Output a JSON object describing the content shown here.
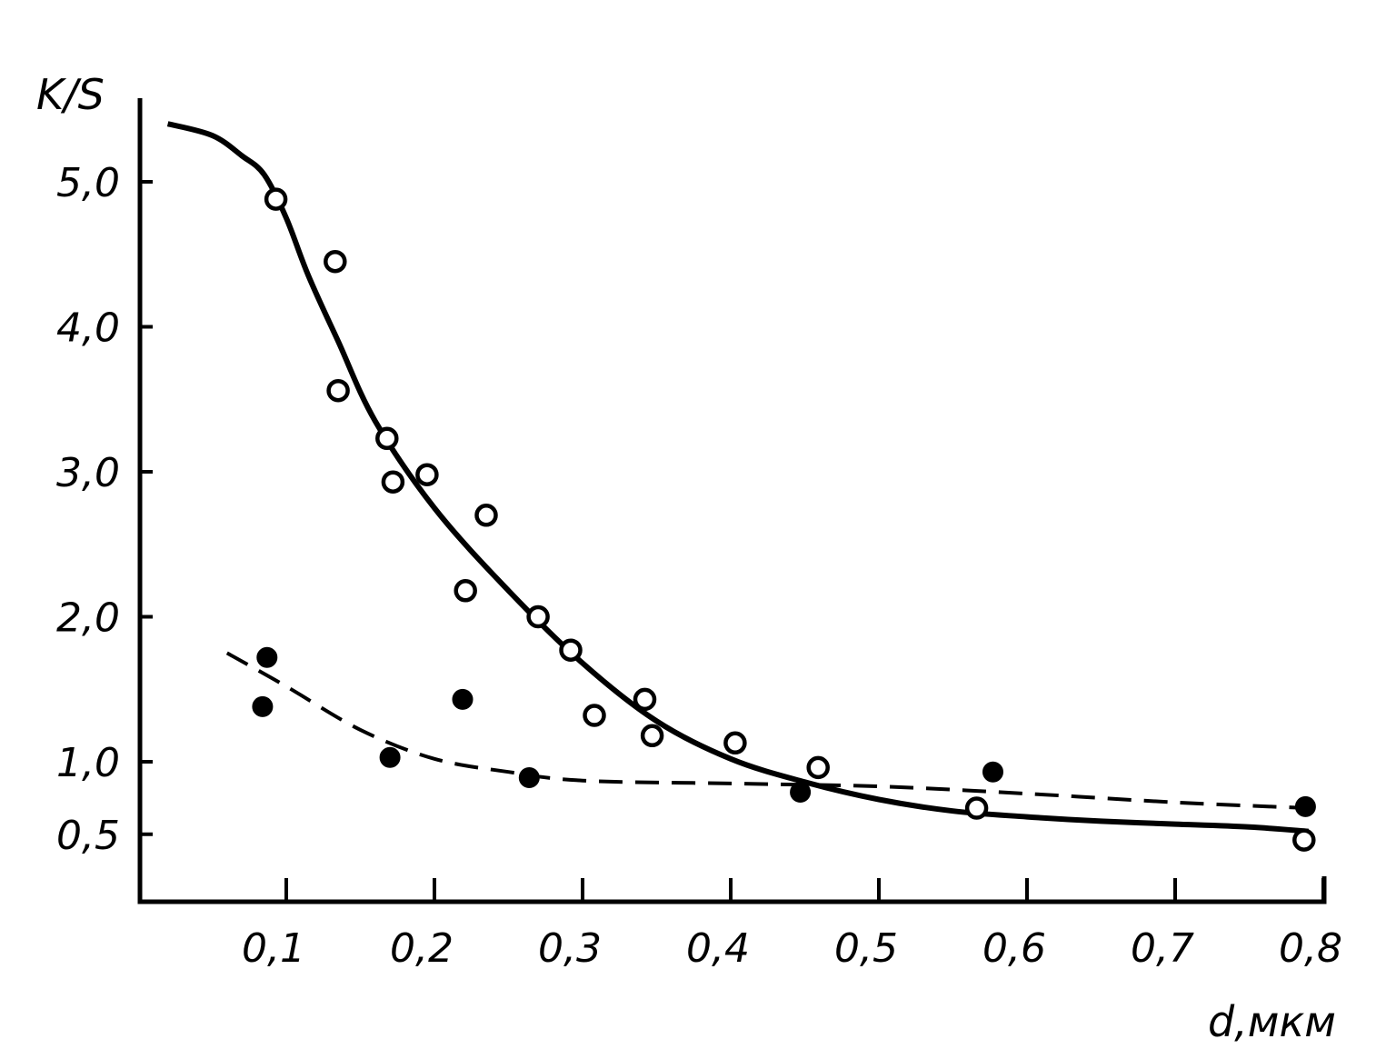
{
  "chart_data": {
    "type": "scatter",
    "title": "",
    "xlabel": "d,мкм",
    "ylabel": "K/S",
    "xlim": [
      0,
      0.8
    ],
    "ylim": [
      0,
      5.4
    ],
    "grid": false,
    "x_ticks": [
      {
        "value": 0.1,
        "label": "0,1"
      },
      {
        "value": 0.2,
        "label": "0,2"
      },
      {
        "value": 0.3,
        "label": "0,3"
      },
      {
        "value": 0.4,
        "label": "0,4"
      },
      {
        "value": 0.5,
        "label": "0,5"
      },
      {
        "value": 0.6,
        "label": "0,6"
      },
      {
        "value": 0.7,
        "label": "0,7"
      },
      {
        "value": 0.8,
        "label": "0,8"
      }
    ],
    "y_ticks": [
      {
        "value": 0.5,
        "label": "0,5"
      },
      {
        "value": 1.0,
        "label": "1,0"
      },
      {
        "value": 2.0,
        "label": "2,0"
      },
      {
        "value": 3.0,
        "label": "3,0"
      },
      {
        "value": 4.0,
        "label": "4,0"
      },
      {
        "value": 5.0,
        "label": "5,0"
      }
    ],
    "series": [
      {
        "marker": "open-circle",
        "line": "none",
        "points": [
          [
            0.093,
            4.88
          ],
          [
            0.133,
            4.45
          ],
          [
            0.135,
            3.56
          ],
          [
            0.168,
            3.23
          ],
          [
            0.172,
            2.93
          ],
          [
            0.195,
            2.98
          ],
          [
            0.221,
            2.18
          ],
          [
            0.235,
            2.7
          ],
          [
            0.27,
            2.0
          ],
          [
            0.292,
            1.77
          ],
          [
            0.308,
            1.32
          ],
          [
            0.342,
            1.43
          ],
          [
            0.347,
            1.18
          ],
          [
            0.403,
            1.13
          ],
          [
            0.459,
            0.96
          ],
          [
            0.566,
            0.68
          ],
          [
            0.787,
            0.46
          ]
        ]
      },
      {
        "marker": "filled-circle",
        "line": "none",
        "points": [
          [
            0.087,
            1.72
          ],
          [
            0.084,
            1.38
          ],
          [
            0.17,
            1.03
          ],
          [
            0.219,
            1.43
          ],
          [
            0.264,
            0.89
          ],
          [
            0.447,
            0.79
          ],
          [
            0.577,
            0.93
          ],
          [
            0.788,
            0.69
          ]
        ]
      },
      {
        "marker": "none",
        "line": "solid",
        "points": [
          [
            0.02,
            5.4
          ],
          [
            0.05,
            5.32
          ],
          [
            0.07,
            5.18
          ],
          [
            0.085,
            5.05
          ],
          [
            0.1,
            4.75
          ],
          [
            0.115,
            4.35
          ],
          [
            0.135,
            3.9
          ],
          [
            0.16,
            3.35
          ],
          [
            0.2,
            2.75
          ],
          [
            0.25,
            2.18
          ],
          [
            0.3,
            1.68
          ],
          [
            0.35,
            1.28
          ],
          [
            0.4,
            1.02
          ],
          [
            0.45,
            0.86
          ],
          [
            0.5,
            0.74
          ],
          [
            0.55,
            0.66
          ],
          [
            0.6,
            0.62
          ],
          [
            0.65,
            0.59
          ],
          [
            0.7,
            0.57
          ],
          [
            0.75,
            0.55
          ],
          [
            0.79,
            0.52
          ]
        ]
      },
      {
        "marker": "none",
        "line": "dashed",
        "points": [
          [
            0.06,
            1.75
          ],
          [
            0.1,
            1.52
          ],
          [
            0.15,
            1.22
          ],
          [
            0.2,
            1.02
          ],
          [
            0.25,
            0.93
          ],
          [
            0.3,
            0.87
          ],
          [
            0.4,
            0.85
          ],
          [
            0.5,
            0.83
          ],
          [
            0.6,
            0.78
          ],
          [
            0.7,
            0.72
          ],
          [
            0.79,
            0.68
          ]
        ]
      }
    ]
  }
}
